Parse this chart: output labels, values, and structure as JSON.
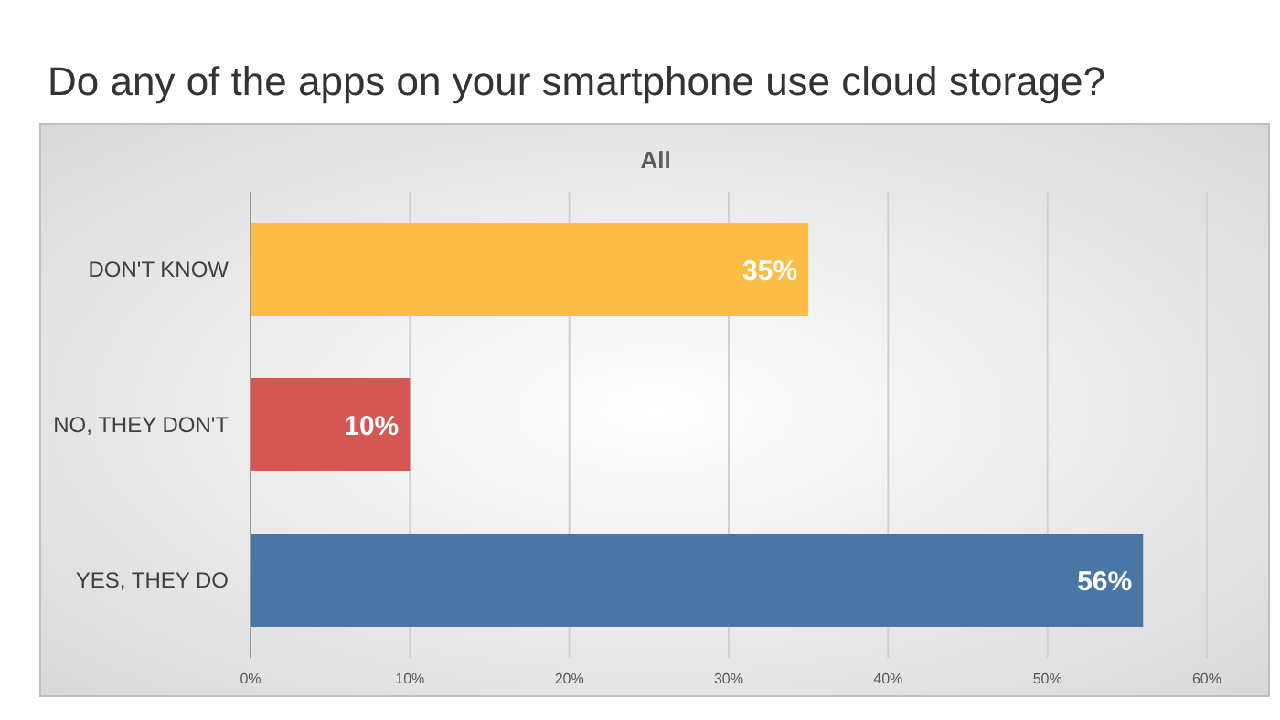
{
  "chart_data": {
    "type": "bar",
    "orientation": "horizontal",
    "title": "Do any of the apps on your smartphone use cloud storage?",
    "subtitle": "All",
    "categories": [
      "DON'T KNOW",
      "NO, THEY DON'T",
      "YES, THEY DO"
    ],
    "values": [
      35,
      10,
      56
    ],
    "colors": [
      "#fbbd45",
      "#d55754",
      "#4a76a5"
    ],
    "value_labels": [
      "35%",
      "10%",
      "56%"
    ],
    "xlim": [
      0,
      60
    ],
    "xticks": [
      {
        "value": 0,
        "label": "0%"
      },
      {
        "value": 10,
        "label": "10%"
      },
      {
        "value": 20,
        "label": "20%"
      },
      {
        "value": 30,
        "label": "30%"
      },
      {
        "value": 40,
        "label": "40%"
      },
      {
        "value": 50,
        "label": "50%"
      },
      {
        "value": 60,
        "label": "60%"
      }
    ],
    "grid": "x"
  }
}
